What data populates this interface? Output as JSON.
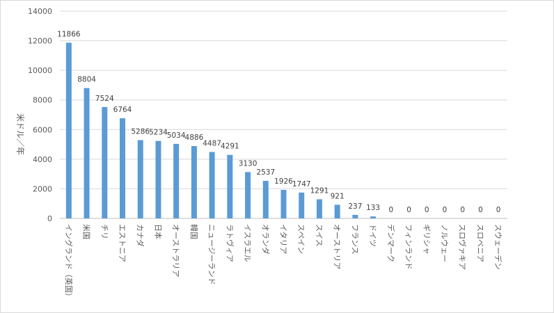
{
  "chart_data": {
    "type": "bar",
    "ylabel": "米ドル／年",
    "ylim": [
      0,
      14000
    ],
    "yticks": [
      0,
      2000,
      4000,
      6000,
      8000,
      10000,
      12000,
      14000
    ],
    "grid": true,
    "bar_color": "#5b9bd5",
    "grid_color": "#d9d9d9",
    "categories": [
      "イングランド（英国）",
      "米国",
      "チリ",
      "エストニア",
      "カナダ",
      "日本",
      "オーストラリア",
      "韓国",
      "ニュージーランド",
      "ラトヴィア",
      "イスラエル",
      "オランダ",
      "イタリア",
      "スペイン",
      "スイス",
      "オーストリア",
      "フランス",
      "ドイツ",
      "デンマーク",
      "フィンランド",
      "ギリシャ",
      "ノルウェー",
      "スロヴァキア",
      "スロベニア",
      "スウェーデン"
    ],
    "values": [
      11866,
      8804,
      7524,
      6764,
      5286,
      5234,
      5034,
      4886,
      4487,
      4291,
      3130,
      2537,
      1926,
      1747,
      1291,
      921,
      237,
      133,
      0,
      0,
      0,
      0,
      0,
      0,
      0
    ]
  }
}
